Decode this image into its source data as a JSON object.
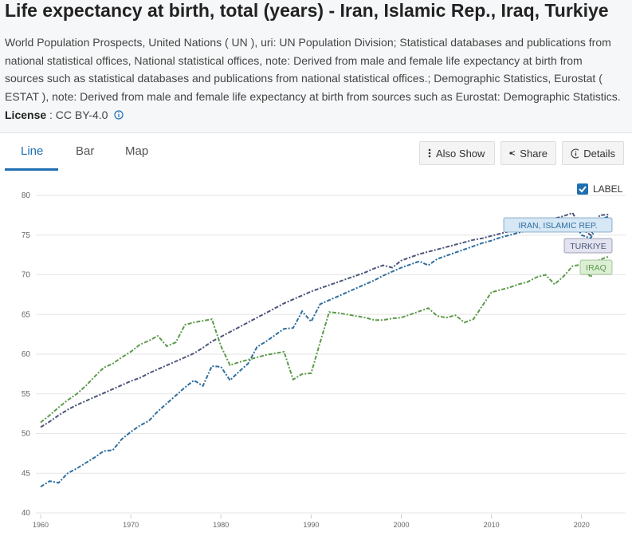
{
  "header": {
    "title": "Life expectancy at birth, total (years) - Iran, Islamic Rep., Iraq, Turkiye",
    "description": "World Population Prospects, United Nations ( UN ), uri: UN Population Division; Statistical databases and publications from national statistical offices, National statistical offices, note: Derived from male and female life expectancy at birth from sources such as statistical databases and publications from national statistical offices.; Demographic Statistics, Eurostat ( ESTAT ), note: Derived from male and female life expectancy at birth from sources such as Eurostat: Demographic Statistics.",
    "license_label": "License",
    "license_value": ": CC BY-4.0"
  },
  "tabs": [
    "Line",
    "Bar",
    "Map"
  ],
  "buttons": [
    "Also Show",
    "Share",
    "Details"
  ],
  "label_toggle": "LABEL",
  "chart_data": {
    "type": "line",
    "x": [
      1960,
      1961,
      1962,
      1963,
      1964,
      1965,
      1966,
      1967,
      1968,
      1969,
      1970,
      1971,
      1972,
      1973,
      1974,
      1975,
      1976,
      1977,
      1978,
      1979,
      1980,
      1981,
      1982,
      1983,
      1984,
      1985,
      1986,
      1987,
      1988,
      1989,
      1990,
      1991,
      1992,
      1993,
      1994,
      1995,
      1996,
      1997,
      1998,
      1999,
      2000,
      2001,
      2002,
      2003,
      2004,
      2005,
      2006,
      2007,
      2008,
      2009,
      2010,
      2011,
      2012,
      2013,
      2014,
      2015,
      2016,
      2017,
      2018,
      2019,
      2020,
      2021,
      2022,
      2023
    ],
    "series": [
      {
        "name": "IRAN, ISLAMIC REP.",
        "color": "#2e6e9e",
        "label_bg": "#d6e7f5",
        "values": [
          43.3,
          44.0,
          43.8,
          45.0,
          45.6,
          46.3,
          47.0,
          47.8,
          47.9,
          49.3,
          50.2,
          51.0,
          51.6,
          52.8,
          53.8,
          54.8,
          55.8,
          56.7,
          56.0,
          58.5,
          58.4,
          56.7,
          57.8,
          58.8,
          60.9,
          61.6,
          62.4,
          63.2,
          63.3,
          65.4,
          64.1,
          66.3,
          66.8,
          67.3,
          67.8,
          68.3,
          68.8,
          69.3,
          69.9,
          70.4,
          70.9,
          71.3,
          71.7,
          71.2,
          72.0,
          72.4,
          72.8,
          73.2,
          73.6,
          74.0,
          74.3,
          74.7,
          75.0,
          75.3,
          75.6,
          75.8,
          76.2,
          76.5,
          76.8,
          77.0,
          75.0,
          74.6,
          76.8,
          77.4
        ]
      },
      {
        "name": "TURKIYE",
        "color": "#4b5579",
        "label_bg": "#e2e3ee",
        "values": [
          50.8,
          51.5,
          52.3,
          53.0,
          53.6,
          54.1,
          54.6,
          55.1,
          55.6,
          56.1,
          56.6,
          57.0,
          57.6,
          58.1,
          58.6,
          59.1,
          59.6,
          60.1,
          60.8,
          61.6,
          62.2,
          62.8,
          63.4,
          64.0,
          64.6,
          65.2,
          65.8,
          66.4,
          66.9,
          67.4,
          67.9,
          68.3,
          68.7,
          69.1,
          69.5,
          69.9,
          70.3,
          70.8,
          71.2,
          70.9,
          71.8,
          72.2,
          72.6,
          72.9,
          73.2,
          73.5,
          73.8,
          74.1,
          74.4,
          74.6,
          74.9,
          75.2,
          75.5,
          75.8,
          76.1,
          76.5,
          76.8,
          77.1,
          77.4,
          77.8,
          75.8,
          75.0,
          77.5,
          77.6
        ]
      },
      {
        "name": "IRAQ",
        "color": "#5c9a4a",
        "label_bg": "#dcefd5",
        "values": [
          51.4,
          52.3,
          53.3,
          54.2,
          55.0,
          56.0,
          57.2,
          58.3,
          58.8,
          59.6,
          60.3,
          61.2,
          61.7,
          62.3,
          61.0,
          61.5,
          63.7,
          64.0,
          64.2,
          64.4,
          61.0,
          58.6,
          59.0,
          59.3,
          59.6,
          59.9,
          60.1,
          60.3,
          56.8,
          57.5,
          57.6,
          61.5,
          65.3,
          65.2,
          65.0,
          64.8,
          64.6,
          64.3,
          64.3,
          64.5,
          64.6,
          65.0,
          65.4,
          65.8,
          64.8,
          64.6,
          64.9,
          64.0,
          64.4,
          66.1,
          67.8,
          68.1,
          68.4,
          68.8,
          69.1,
          69.7,
          70.0,
          68.8,
          69.8,
          71.1,
          71.3,
          69.7,
          71.9,
          72.3
        ]
      }
    ],
    "xlim": [
      1960,
      2024
    ],
    "xticks": [
      1960,
      1970,
      1980,
      1990,
      2000,
      2010,
      2020
    ],
    "ylim": [
      40,
      80
    ],
    "yticks": [
      40,
      45,
      50,
      55,
      60,
      65,
      70,
      75,
      80
    ],
    "grid": true
  }
}
